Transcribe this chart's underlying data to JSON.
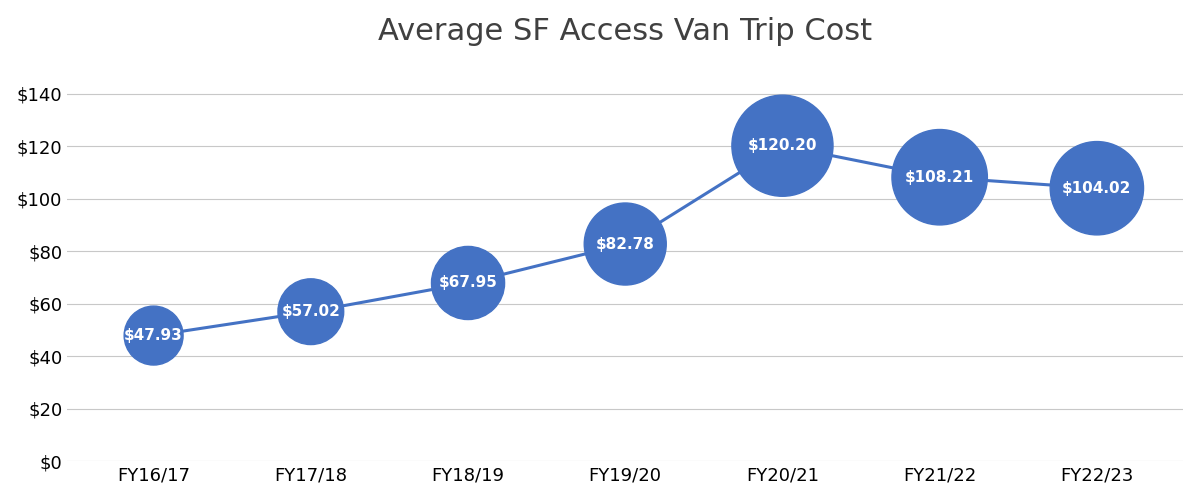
{
  "title": "Average SF Access Van Trip Cost",
  "categories": [
    "FY16/17",
    "FY17/18",
    "FY18/19",
    "FY19/20",
    "FY20/21",
    "FY21/22",
    "FY22/23"
  ],
  "values": [
    47.93,
    57.02,
    67.95,
    82.78,
    120.2,
    108.21,
    104.02
  ],
  "labels": [
    "$47.93",
    "$57.02",
    "$67.95",
    "$82.78",
    "$120.20",
    "$108.21",
    "$104.02"
  ],
  "line_color": "#4472C4",
  "marker_color": "#4472C4",
  "label_color": "#FFFFFF",
  "background_color": "#FFFFFF",
  "grid_color": "#C8C8C8",
  "title_fontsize": 22,
  "label_fontsize": 11,
  "tick_fontsize": 13,
  "ylim": [
    0,
    150
  ],
  "yticks": [
    0,
    20,
    40,
    60,
    80,
    100,
    120,
    140
  ],
  "line_width": 2.2,
  "title_color": "#404040"
}
